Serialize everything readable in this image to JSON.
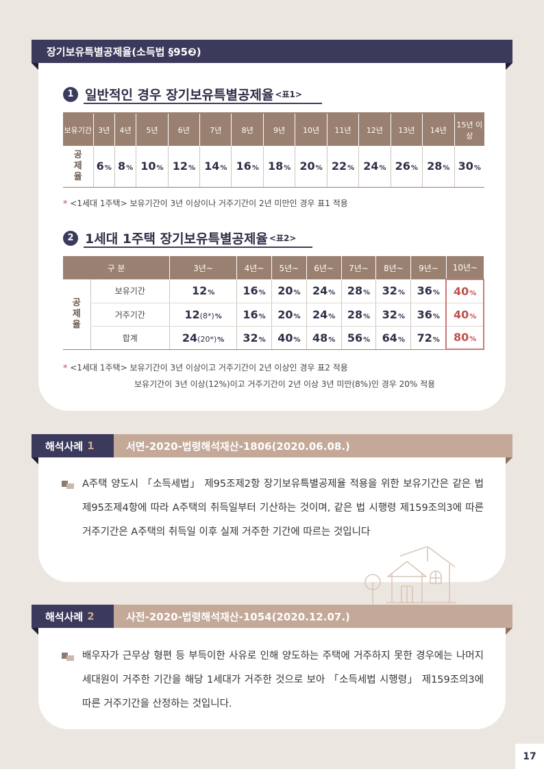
{
  "header": {
    "title": "장기보유특별공제율(소득법 §95❷)"
  },
  "section1": {
    "num": "1",
    "title": "일반적인 경우 장기보유특별공제율",
    "suffix": "<표1>",
    "table": {
      "row_header_1": "보유기간",
      "columns": [
        "3년",
        "4년",
        "5년",
        "6년",
        "7년",
        "8년",
        "9년",
        "10년",
        "11년",
        "12년",
        "13년",
        "14년",
        "15년 이상"
      ],
      "row_header_2": "공제율",
      "values": [
        "6",
        "8",
        "10",
        "12",
        "14",
        "16",
        "18",
        "20",
        "22",
        "24",
        "26",
        "28",
        "30"
      ],
      "unit": "%"
    },
    "note": "<1세대 1주택> 보유기간이 3년 이상이나 거주기간이 2년 미만인 경우 표1 적용"
  },
  "section2": {
    "num": "2",
    "title": "1세대 1주택 장기보유특별공제율",
    "suffix": "<표2>",
    "table": {
      "header_label": "구 분",
      "columns": [
        "3년~",
        "4년~",
        "5년~",
        "6년~",
        "7년~",
        "8년~",
        "9년~",
        "10년~"
      ],
      "group_label": "공제율",
      "rows": [
        {
          "label": "보유기간",
          "first": "12",
          "first_paren": "",
          "values": [
            "16",
            "20",
            "24",
            "28",
            "32",
            "36",
            "40"
          ]
        },
        {
          "label": "거주기간",
          "first": "12",
          "first_paren": "(8*)",
          "values": [
            "16",
            "20",
            "24",
            "28",
            "32",
            "36",
            "40"
          ]
        },
        {
          "label": "합계",
          "first": "24",
          "first_paren": "(20*)",
          "values": [
            "32",
            "40",
            "48",
            "56",
            "64",
            "72",
            "80"
          ]
        }
      ],
      "unit": "%"
    },
    "note1": "<1세대 1주택> 보유기간이 3년 이상이고 거주기간이 2년 이상인 경우 표2 적용",
    "note2": "보유기간이 3년 이상(12%)이고 거주기간이 2년 이상 3년 미만(8%)인 경우 20% 적용"
  },
  "case1": {
    "label": "해석사례",
    "num": "1",
    "title": "서면-2020-법령해석재산-1806(2020.06.08.)",
    "body": "A주택 양도시 「소득세법」 제95조제2항 장기보유특별공제율 적용을 위한 보유기간은 같은 법 제95조제4항에 따라 A주택의 취득일부터 기산하는 것이며, 같은 법 시행령 제159조의3에 따른 거주기간은 A주택의 취득일 이후 실제 거주한 기간에 따르는 것입니다"
  },
  "case2": {
    "label": "해석사례",
    "num": "2",
    "title": "사전-2020-법령해석재산-1054(2020.12.07.)",
    "body": "배우자가 근무상 형편 등 부득이한 사유로 인해 양도하는 주택에 거주하지 못한 경우에는 나머지 세대원이 거주한 기간을 해당 1세대가 거주한 것으로 보아 「소득세법 시행령」 제159조의3에 따른 거주기간을 산정하는 것입니다."
  },
  "note_marker": "*",
  "page_number": "17",
  "colors": {
    "navy": "#3b3a5c",
    "taupe": "#9a8070",
    "rose": "#c4a898",
    "highlight": "#c0504d",
    "background": "#ece6e0"
  }
}
